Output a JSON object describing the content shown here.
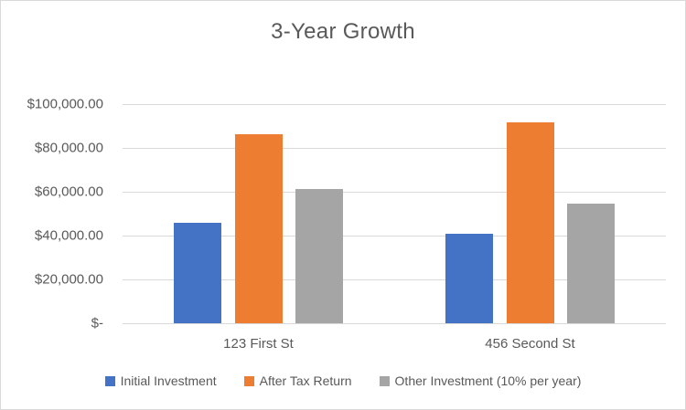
{
  "chart_data": {
    "type": "bar",
    "title": "3-Year Growth",
    "categories": [
      "123 First St",
      "456 Second St"
    ],
    "series": [
      {
        "name": "Initial Investment",
        "color": "#4472C4",
        "values": [
          46000,
          41000
        ]
      },
      {
        "name": "After Tax Return",
        "color": "#ED7D31",
        "values": [
          86400,
          91700
        ]
      },
      {
        "name": "Other Investment (10% per year)",
        "color": "#A5A5A5",
        "values": [
          61226,
          54571
        ]
      }
    ],
    "xlabel": "",
    "ylabel": "",
    "ylim": [
      0,
      100000
    ],
    "y_tick_step": 20000,
    "y_tick_labels": [
      "$-",
      "$20,000.00",
      "$40,000.00",
      "$60,000.00",
      "$80,000.00",
      "$100,000.00"
    ],
    "grid": true,
    "legend_position": "bottom"
  },
  "style": {
    "text_color": "#595959",
    "gridline_color": "#D9D9D9",
    "border_color": "#D9D9D9",
    "background": "#FFFFFF"
  }
}
